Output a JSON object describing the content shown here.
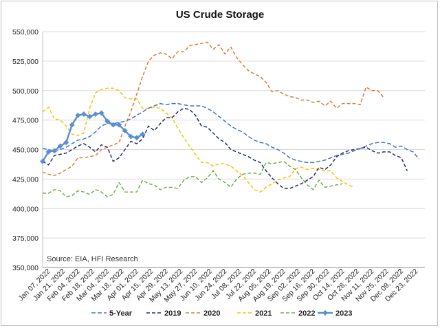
{
  "chart_data": {
    "type": "line",
    "title": "US Crude Storage",
    "annotation": "Source: EIA, HFI Research",
    "xlabel": "",
    "ylabel": "",
    "ylim": [
      350000,
      550000
    ],
    "y_ticks": [
      350000,
      375000,
      400000,
      425000,
      450000,
      475000,
      500000,
      525000,
      550000
    ],
    "y_tick_labels": [
      "350,000",
      "375,000",
      "400,000",
      "425,000",
      "450,000",
      "475,000",
      "500,000",
      "525,000",
      "550,000"
    ],
    "x_tick_labels": [
      "Jan 07, 2022",
      "Jan 21, 2022",
      "Feb 04, 2022",
      "Feb 18, 2022",
      "Mar 04, 2022",
      "Mar 18, 2022",
      "Apr 01, 2022",
      "Apr 15, 2022",
      "Apr 29, 2022",
      "May 13, 2022",
      "May 27, 2022",
      "Jun 10, 2022",
      "Jun 24, 2022",
      "Jul 08, 2022",
      "Jul 22, 2022",
      "Aug 05, 2022",
      "Aug 19, 2022",
      "Sep 02, 2022",
      "Sep 16, 2022",
      "Sep 30, 2022",
      "Oct 14, 2022",
      "Oct 28, 2022",
      "Nov 11, 2022",
      "Nov 25, 2022",
      "Dec 09, 2022",
      "Dec 23, 2022"
    ],
    "grid": true,
    "legend_position": "bottom",
    "series": [
      {
        "name": "5-Year",
        "color": "#4472c4",
        "dash": "6,3",
        "marker": false,
        "width": 1.5,
        "values": [
          451000,
          450000,
          448000,
          450000,
          452000,
          455000,
          458000,
          459000,
          461000,
          465000,
          470000,
          472000,
          472000,
          473000,
          474000,
          476000,
          479000,
          482000,
          485000,
          487000,
          489000,
          488000,
          489000,
          489000,
          488000,
          487000,
          487000,
          487000,
          485000,
          482000,
          478000,
          474000,
          470000,
          467000,
          465000,
          461000,
          458000,
          456000,
          455000,
          452000,
          450000,
          447000,
          443000,
          441000,
          440000,
          439000,
          439000,
          440000,
          441000,
          443000,
          445000,
          446000,
          447000,
          449000,
          451000,
          453000,
          455000,
          456000,
          456000,
          455000,
          452000,
          453000,
          450000,
          448000,
          442000
        ]
      },
      {
        "name": "2019",
        "color": "#1f2d6b",
        "dash": "5,3",
        "marker": false,
        "width": 1.5,
        "values": [
          440000,
          437000,
          445000,
          446000,
          447000,
          450000,
          453000,
          455000,
          452000,
          448000,
          454000,
          452000,
          440000,
          443000,
          450000,
          457000,
          455000,
          459000,
          470000,
          466000,
          472000,
          477000,
          477000,
          482000,
          485000,
          484000,
          479000,
          470000,
          469000,
          464000,
          459000,
          456000,
          450000,
          448000,
          446000,
          444000,
          441000,
          439000,
          432000,
          426000,
          421000,
          417000,
          417000,
          419000,
          421000,
          424000,
          427000,
          435000,
          433000,
          437000,
          444000,
          447000,
          449000,
          450000,
          451000,
          452000,
          449000,
          447000,
          448000,
          448000,
          445000,
          443000,
          432000
        ]
      },
      {
        "name": "2020",
        "color": "#e07b39",
        "dash": "5,3",
        "marker": false,
        "width": 1.5,
        "values": [
          431000,
          429000,
          428000,
          430000,
          433000,
          436000,
          443000,
          443000,
          444000,
          445000,
          450000,
          452000,
          454000,
          456000,
          470000,
          482000,
          497000,
          512000,
          525000,
          530000,
          532000,
          531000,
          527000,
          533000,
          533000,
          538000,
          539000,
          540000,
          541000,
          535000,
          539000,
          531000,
          537000,
          528000,
          522000,
          517000,
          514000,
          512000,
          507000,
          499000,
          500000,
          497000,
          495000,
          494000,
          492000,
          492000,
          490000,
          491000,
          487000,
          491000,
          485000,
          489000,
          489000,
          489000,
          488000,
          503000,
          500000,
          500000,
          494000
        ]
      },
      {
        "name": "2021",
        "color": "#ffc000",
        "dash": "5,3",
        "marker": false,
        "width": 1.5,
        "values": [
          482000,
          486000,
          476000,
          475000,
          470000,
          463000,
          462000,
          464000,
          485000,
          498000,
          501000,
          502000,
          502000,
          500000,
          494000,
          493000,
          493000,
          485000,
          485000,
          486000,
          485000,
          481000,
          477000,
          468000,
          460000,
          453000,
          446000,
          439000,
          439000,
          436000,
          438000,
          438000,
          436000,
          432000,
          428000,
          422000,
          416000,
          414000,
          418000,
          421000,
          424000,
          426000,
          427000,
          434000,
          435000,
          433000,
          434000,
          433000,
          432000,
          432000,
          426000,
          423000,
          420000,
          418000
        ]
      },
      {
        "name": "2022",
        "color": "#70ad47",
        "dash": "5,3",
        "marker": false,
        "width": 1.5,
        "values": [
          413000,
          413000,
          416000,
          415000,
          410000,
          411000,
          415000,
          414000,
          412000,
          416000,
          414000,
          410000,
          412000,
          422000,
          414000,
          414000,
          414000,
          424000,
          421000,
          420000,
          416000,
          418000,
          418000,
          417000,
          424000,
          427000,
          427000,
          422000,
          426000,
          432000,
          425000,
          422000,
          418000,
          425000,
          429000,
          430000,
          430000,
          429000,
          439000,
          438000,
          439000,
          440000,
          436000,
          433000,
          426000,
          420000,
          416000,
          424000,
          418000,
          419000,
          420000,
          421000
        ]
      },
      {
        "name": "2023",
        "color": "#5b8fd0",
        "dash": "",
        "marker": true,
        "width": 2.5,
        "values": [
          440000,
          448000,
          449000,
          453000,
          456000,
          471000,
          479000,
          480000,
          478000,
          480000,
          481000,
          474000,
          471000,
          471000,
          466000,
          461000,
          460000,
          463000
        ]
      }
    ]
  }
}
